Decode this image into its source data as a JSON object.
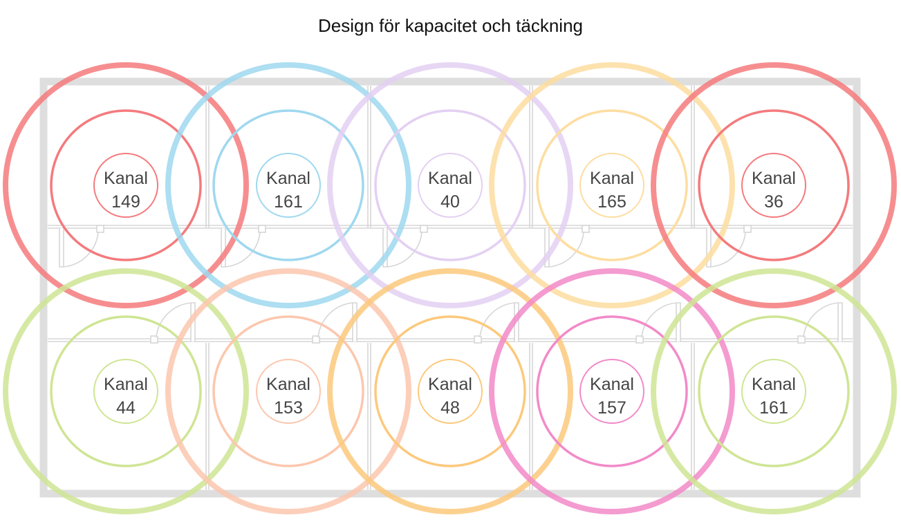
{
  "title": "Design för kapacitet och täckning",
  "cells": [
    {
      "label": "Kanal",
      "channel": "149",
      "color": "#f47a7d"
    },
    {
      "label": "Kanal",
      "channel": "161",
      "color": "#9fd8ef"
    },
    {
      "label": "Kanal",
      "channel": "40",
      "color": "#e3d0f2"
    },
    {
      "label": "Kanal",
      "channel": "165",
      "color": "#fddda0"
    },
    {
      "label": "Kanal",
      "channel": "36",
      "color": "#f47a7d"
    },
    {
      "label": "Kanal",
      "channel": "44",
      "color": "#cfe594"
    },
    {
      "label": "Kanal",
      "channel": "153",
      "color": "#fcc7ae"
    },
    {
      "label": "Kanal",
      "channel": "48",
      "color": "#fcc97c"
    },
    {
      "label": "Kanal",
      "channel": "157",
      "color": "#f28ac8"
    },
    {
      "label": "Kanal",
      "channel": "161",
      "color": "#cfe594"
    }
  ]
}
